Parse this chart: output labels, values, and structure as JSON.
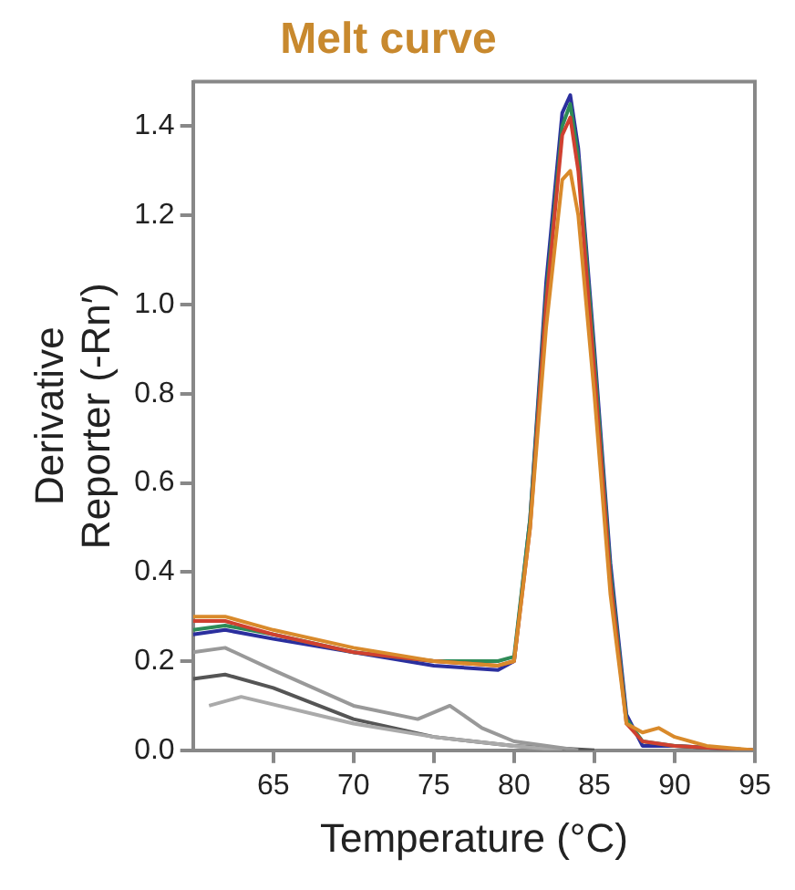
{
  "chart_data": {
    "type": "line",
    "title": "Melt curve",
    "xlabel": "Temperature (°C)",
    "ylabel": "Derivative\nReporter (-Rn′)",
    "xlim": [
      60,
      95
    ],
    "xticks": [
      65,
      70,
      75,
      80,
      85,
      90,
      95
    ],
    "ylim": [
      0,
      1.5
    ],
    "yticks": [
      {
        "value": 0,
        "label": "0.0"
      },
      0.2,
      0.4,
      0.6,
      0.8,
      {
        "value": 1,
        "label": "1.0"
      },
      1.2,
      1.4
    ],
    "grid": false,
    "legend": false,
    "marker": "none",
    "line_style": "solid",
    "series": [
      {
        "color": "#999999",
        "x": [
          60,
          62,
          65,
          70,
          74,
          76,
          78,
          80,
          84
        ],
        "values": [
          0.22,
          0.23,
          0.18,
          0.1,
          0.07,
          0.1,
          0.05,
          0.02,
          0
        ]
      },
      {
        "color": "#aaaaaa",
        "x": [
          61,
          63,
          70,
          75,
          80,
          83
        ],
        "values": [
          0.1,
          0.12,
          0.06,
          0.03,
          0.01,
          0
        ]
      },
      {
        "color": "#555555",
        "x": [
          60,
          62,
          65,
          70,
          75,
          80,
          85
        ],
        "values": [
          0.16,
          0.17,
          0.14,
          0.07,
          0.03,
          0.01,
          0
        ]
      },
      {
        "color": "#d98a2b",
        "x": [
          60,
          62,
          65,
          70,
          75,
          79,
          80,
          81,
          82,
          83,
          83.5,
          84,
          85,
          86,
          87,
          88,
          89,
          90,
          92,
          95
        ],
        "values": [
          0.3,
          0.3,
          0.27,
          0.23,
          0.2,
          0.19,
          0.2,
          0.5,
          0.95,
          1.28,
          1.3,
          1.2,
          0.8,
          0.35,
          0.06,
          0.04,
          0.05,
          0.03,
          0.01,
          0
        ]
      },
      {
        "color": "#d04030",
        "x": [
          60,
          62,
          65,
          70,
          75,
          79,
          80,
          81,
          82,
          83,
          83.5,
          84,
          85,
          86,
          87,
          88,
          90,
          95
        ],
        "values": [
          0.29,
          0.29,
          0.26,
          0.22,
          0.2,
          0.19,
          0.2,
          0.5,
          1.0,
          1.38,
          1.42,
          1.3,
          0.85,
          0.38,
          0.06,
          0.02,
          0.01,
          0
        ]
      },
      {
        "color": "#2e8b57",
        "x": [
          60,
          62,
          65,
          70,
          75,
          79,
          80,
          81,
          82,
          83,
          83.5,
          84,
          85,
          86,
          87,
          88,
          90,
          95
        ],
        "values": [
          0.27,
          0.28,
          0.26,
          0.22,
          0.2,
          0.2,
          0.21,
          0.52,
          1.02,
          1.4,
          1.45,
          1.33,
          0.88,
          0.4,
          0.07,
          0.02,
          0.01,
          0
        ]
      },
      {
        "color": "#2b2f9e",
        "x": [
          60,
          62,
          65,
          70,
          75,
          79,
          80,
          81,
          82,
          83,
          83.5,
          84,
          85,
          86,
          87,
          88,
          90,
          95
        ],
        "values": [
          0.26,
          0.27,
          0.25,
          0.22,
          0.19,
          0.18,
          0.2,
          0.52,
          1.05,
          1.43,
          1.47,
          1.35,
          0.9,
          0.42,
          0.08,
          0.01,
          0.01,
          0
        ]
      }
    ]
  }
}
